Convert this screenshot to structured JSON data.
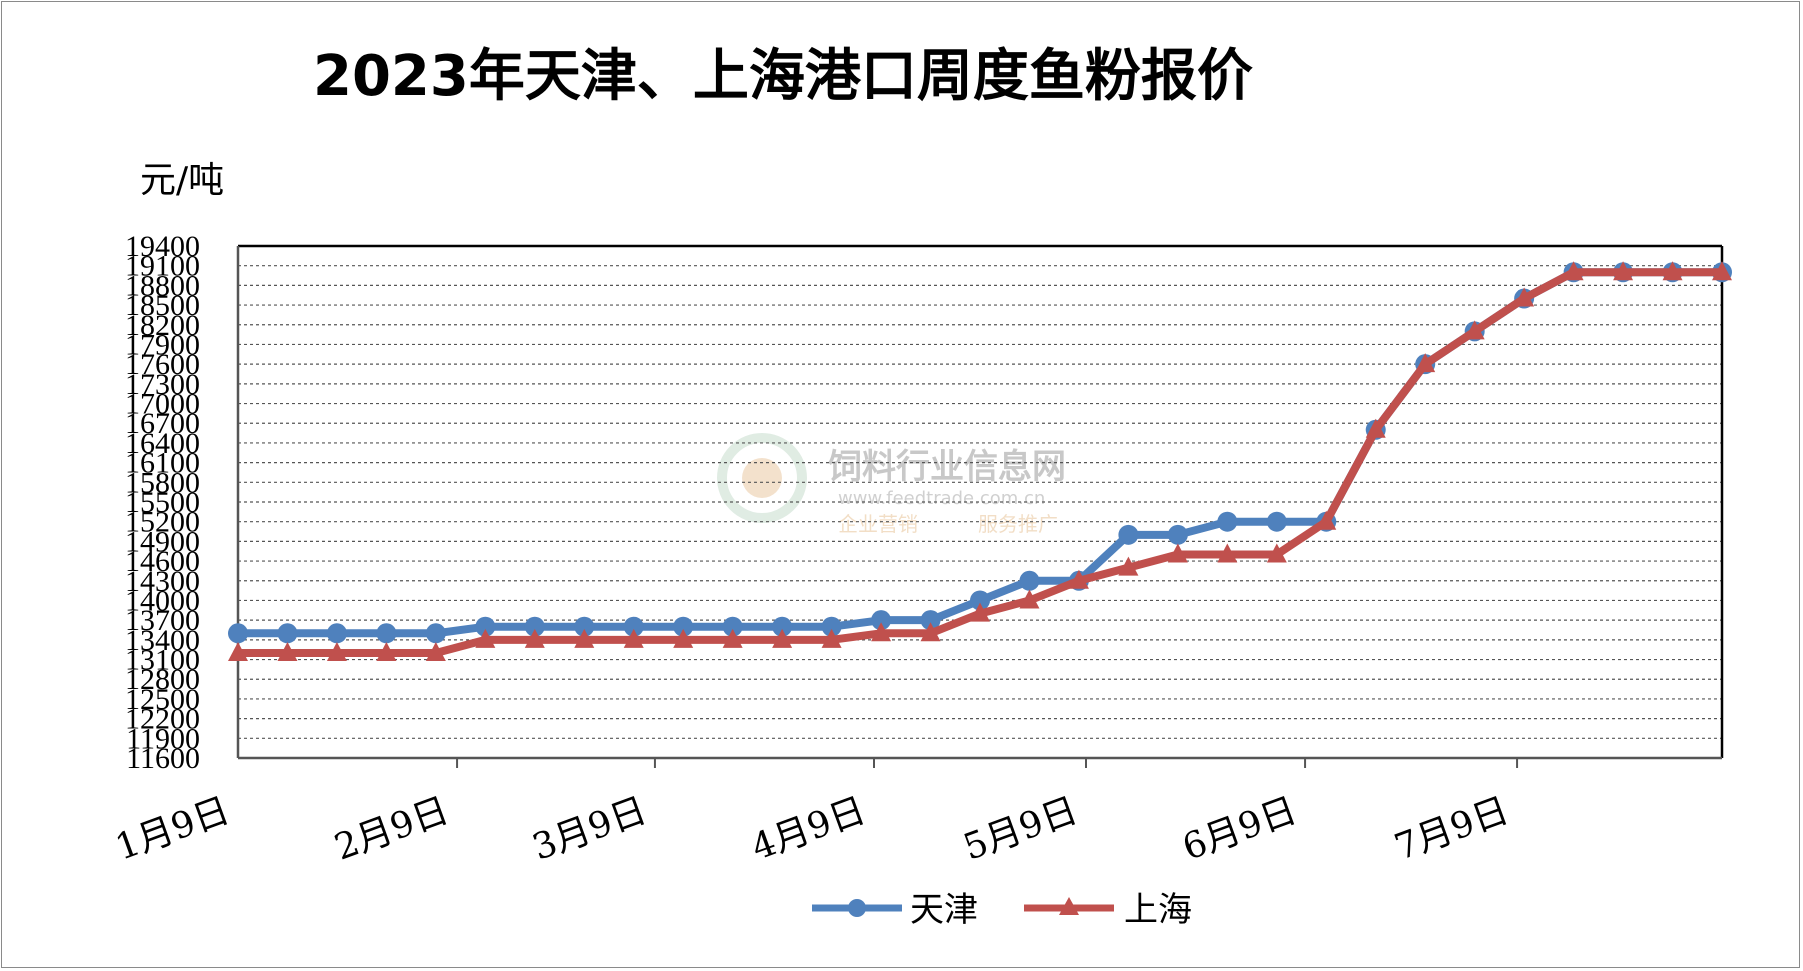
{
  "chart_data": {
    "type": "line",
    "title": "2023年天津、上海港口周度鱼粉报价",
    "ylabel": "元/吨",
    "xlabel": "",
    "ylim": [
      11600,
      19400
    ],
    "yticks": [
      "19400",
      "19100",
      "18800",
      "18500",
      "18200",
      "17900",
      "17600",
      "17300",
      "17000",
      "16700",
      "16400",
      "16100",
      "15800",
      "15500",
      "15200",
      "14900",
      "14600",
      "14300",
      "14000",
      "13700",
      "13400",
      "13100",
      "12800",
      "12500",
      "12200",
      "11900",
      "11600"
    ],
    "x_tick_labels": [
      "1月9日",
      "2月9日",
      "3月9日",
      "4月9日",
      "5月9日",
      "6月9日",
      "7月9日"
    ],
    "x": [
      "2023-01-09",
      "2023-01-16",
      "2023-01-23",
      "2023-01-30",
      "2023-02-06",
      "2023-02-13",
      "2023-02-20",
      "2023-02-27",
      "2023-03-06",
      "2023-03-13",
      "2023-03-20",
      "2023-03-27",
      "2023-04-03",
      "2023-04-10",
      "2023-04-17",
      "2023-04-24",
      "2023-05-01",
      "2023-05-08",
      "2023-05-15",
      "2023-05-22",
      "2023-05-29",
      "2023-06-05",
      "2023-06-12",
      "2023-06-19",
      "2023-06-26",
      "2023-07-03",
      "2023-07-10",
      "2023-07-17",
      "2023-07-24",
      "2023-07-31",
      "2023-08-07"
    ],
    "series": [
      {
        "name": "天津",
        "color": "#4f81bd",
        "marker": "circle",
        "values": [
          13500,
          13500,
          13500,
          13500,
          13500,
          13600,
          13600,
          13600,
          13600,
          13600,
          13600,
          13600,
          13600,
          13700,
          13700,
          14000,
          14300,
          14300,
          15000,
          15000,
          15200,
          15200,
          15200,
          16600,
          17600,
          18100,
          18600,
          19000,
          19000,
          19000,
          19000
        ]
      },
      {
        "name": "上海",
        "color": "#c0504d",
        "marker": "triangle",
        "values": [
          13200,
          13200,
          13200,
          13200,
          13200,
          13400,
          13400,
          13400,
          13400,
          13400,
          13400,
          13400,
          13400,
          13500,
          13500,
          13800,
          14000,
          14300,
          14500,
          14700,
          14700,
          14700,
          15200,
          16600,
          17600,
          18100,
          18600,
          19000,
          19000,
          19000,
          19000
        ]
      }
    ],
    "grid": true,
    "legend_position": "bottom-center"
  },
  "watermark": {
    "name": "饲料行业信息网",
    "url": "www.feedtrade.com.cn",
    "tag1": "企业营销",
    "tag2": "服务推广"
  }
}
